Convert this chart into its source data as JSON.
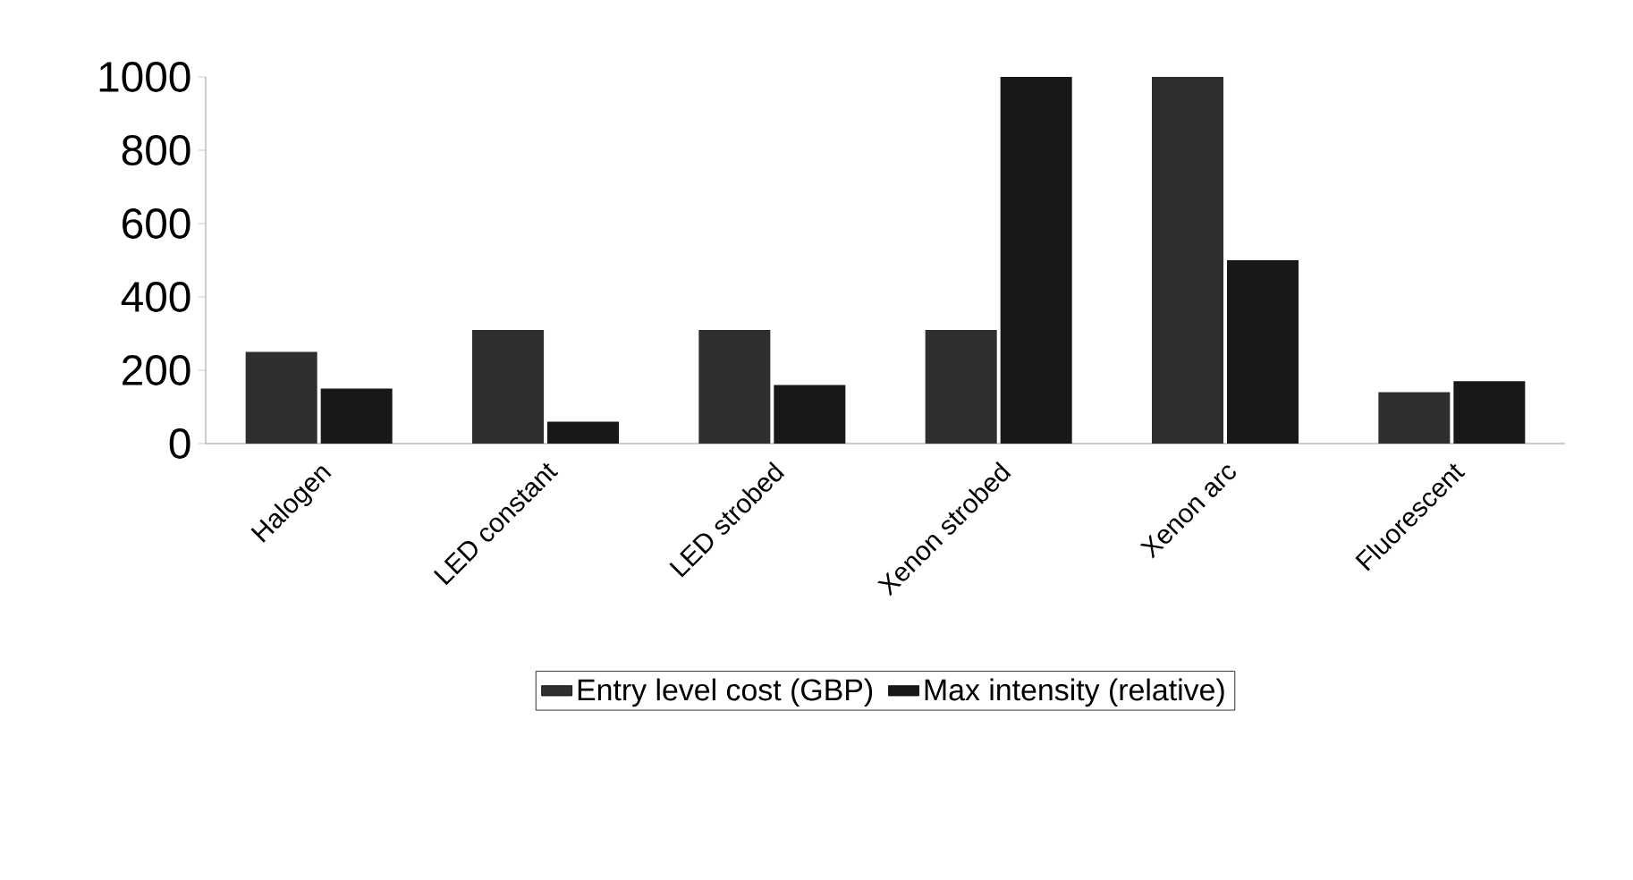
{
  "chart_data": {
    "type": "bar",
    "categories": [
      "Halogen",
      "LED constant",
      "LED strobed",
      "Xenon strobed",
      "Xenon arc",
      "Fluorescent"
    ],
    "series": [
      {
        "name": "Entry level cost (GBP)",
        "color": "#2e2e2e",
        "values": [
          250,
          310,
          310,
          310,
          1000,
          140
        ]
      },
      {
        "name": "Max intensity (relative)",
        "color": "#181818",
        "values": [
          150,
          60,
          160,
          1000,
          500,
          170
        ]
      }
    ],
    "ylim": [
      0,
      1000
    ],
    "yticks": [
      0,
      200,
      400,
      600,
      800,
      1000
    ],
    "grid": false,
    "legend": "bottom"
  }
}
